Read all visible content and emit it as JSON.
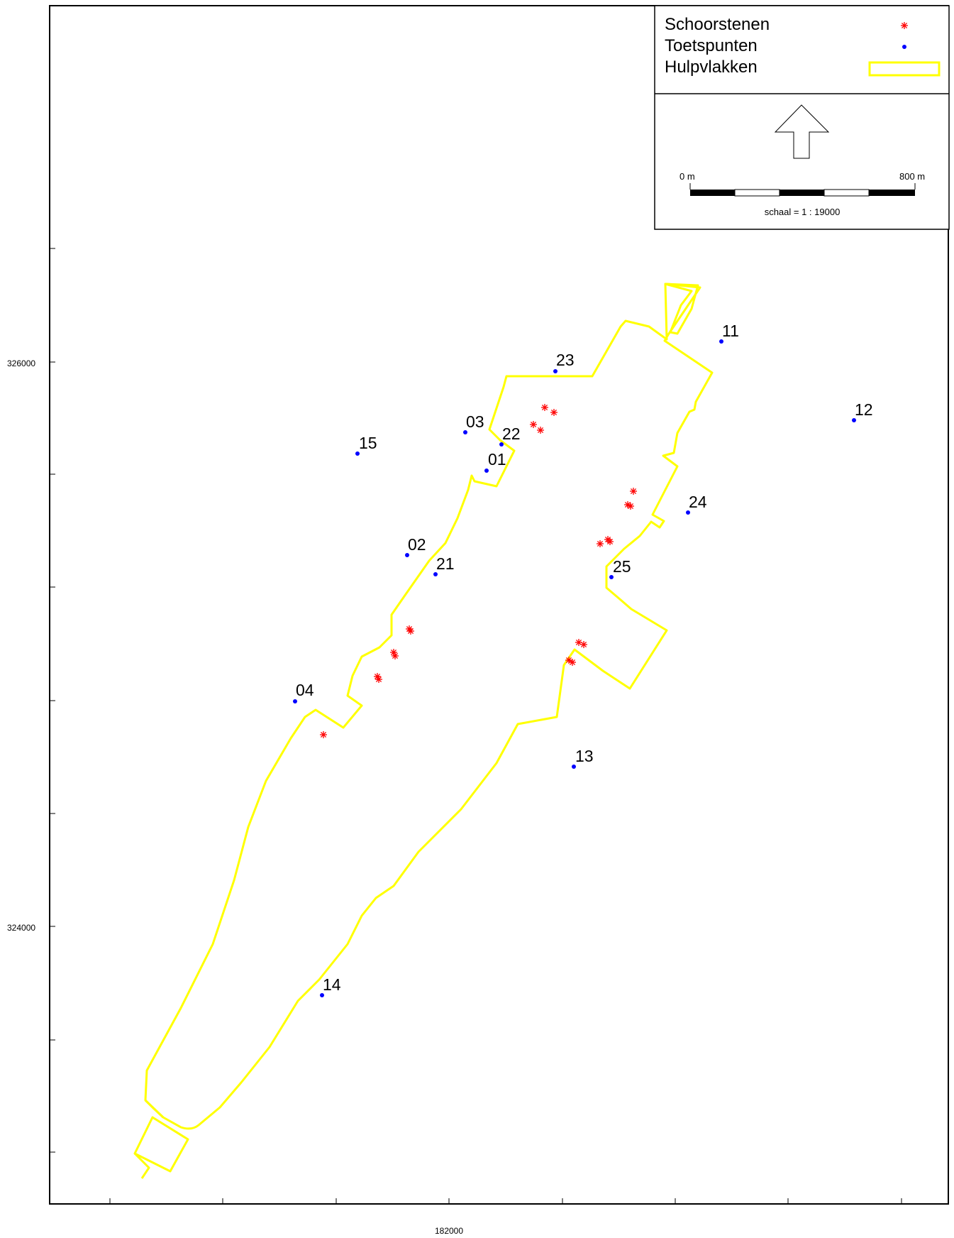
{
  "legend": {
    "items": [
      {
        "label": "Schoorstenen",
        "symbol": "asterisk",
        "color": "#ff0000"
      },
      {
        "label": "Toetspunten",
        "symbol": "dot",
        "color": "#0000ff"
      },
      {
        "label": "Hulpvlakken",
        "symbol": "rectangle-outline",
        "color": "#ffff00"
      }
    ]
  },
  "north_arrow": {
    "icon": "north-arrow-icon"
  },
  "scale_bar": {
    "start_label": "0 m",
    "end_label": "800 m",
    "ratio_label": "schaal = 1 : 19000"
  },
  "axes": {
    "y_labels": [
      {
        "text": "326000",
        "value": 326000
      },
      {
        "text": "324000",
        "value": 324000
      }
    ],
    "x_labels": [
      {
        "text": "182000",
        "value": 182000
      }
    ]
  },
  "toetspunten": [
    {
      "label": "01"
    },
    {
      "label": "02"
    },
    {
      "label": "03"
    },
    {
      "label": "04"
    },
    {
      "label": "11"
    },
    {
      "label": "12"
    },
    {
      "label": "13"
    },
    {
      "label": "14"
    },
    {
      "label": "15"
    },
    {
      "label": "21"
    },
    {
      "label": "22"
    },
    {
      "label": "23"
    },
    {
      "label": "24"
    },
    {
      "label": "25"
    }
  ],
  "colors": {
    "schoorstenen": "#ff0000",
    "toetspunten": "#0000ff",
    "hulpvlakken": "#ffff00",
    "frame": "#000000"
  }
}
